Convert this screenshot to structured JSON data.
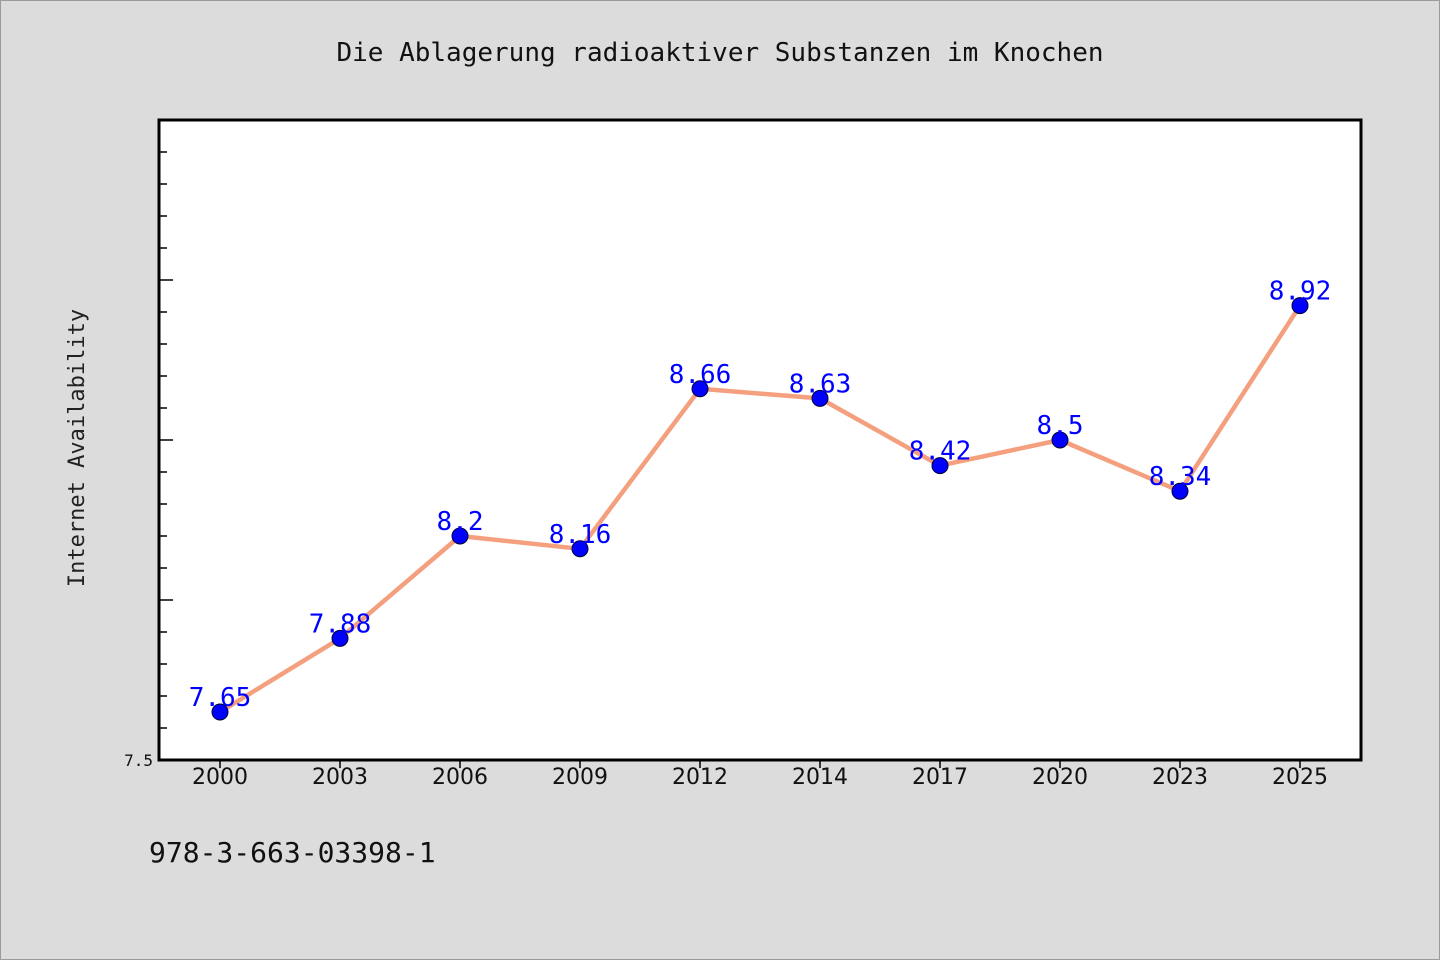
{
  "chart_data": {
    "type": "line",
    "title": "Die Ablagerung radioaktiver Substanzen im Knochen",
    "xlabel": "",
    "ylabel": "Internet Availability",
    "categories": [
      "2000",
      "2003",
      "2006",
      "2009",
      "2012",
      "2014",
      "2017",
      "2020",
      "2023",
      "2025"
    ],
    "series": [
      {
        "values": [
          7.65,
          7.88,
          8.2,
          8.16,
          8.66,
          8.63,
          8.42,
          8.5,
          8.34,
          8.92
        ]
      }
    ],
    "data_labels": [
      "7.65",
      "7.88",
      "8.2",
      "8.16",
      "8.66",
      "8.63",
      "8.42",
      "8.5",
      "8.34",
      "8.92"
    ],
    "yticks_labeled": [
      "7.5"
    ],
    "ylim": [
      7.5,
      9.5
    ],
    "grid": false,
    "colors": {
      "line": "#f4a07e",
      "marker": "#0000ff",
      "label": "#0000ff",
      "background": "#dcdcdc",
      "plot_background": "#ffffff"
    }
  },
  "footer_text": "978-3-663-03398-1"
}
